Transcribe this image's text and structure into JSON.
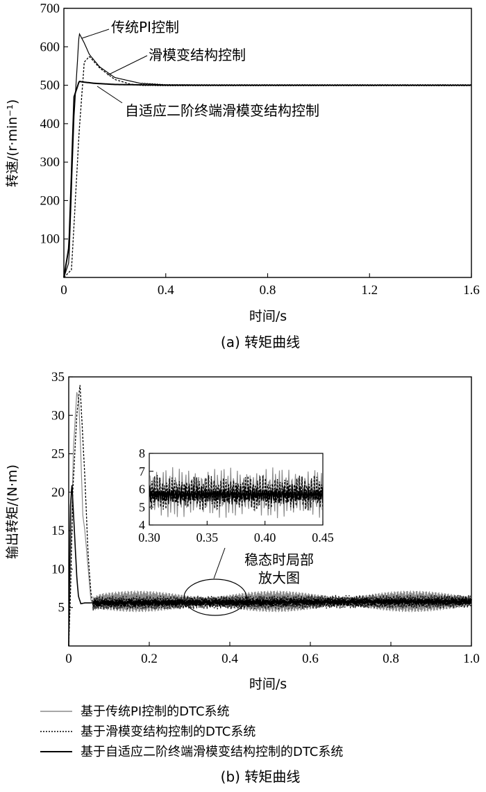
{
  "chart_data": [
    {
      "type": "line",
      "caption": "(a) 转矩曲线",
      "xlabel": "时间/s",
      "ylabel": "转速/(r·min⁻¹)",
      "xlim": [
        0,
        1.6
      ],
      "ylim": [
        0,
        700
      ],
      "xticks": [
        "0",
        "0.4",
        "0.8",
        "1.2",
        "1.6"
      ],
      "yticks": [
        "100",
        "200",
        "300",
        "400",
        "500",
        "600",
        "700"
      ],
      "grid": false,
      "series": [
        {
          "name": "传统PI控制",
          "style": "solid-thin",
          "x": [
            0,
            0.02,
            0.04,
            0.06,
            0.08,
            0.1,
            0.14,
            0.2,
            0.3,
            0.4,
            0.6,
            1.0,
            1.6
          ],
          "y": [
            0,
            40,
            420,
            635,
            610,
            580,
            548,
            520,
            505,
            501,
            500,
            500,
            500
          ]
        },
        {
          "name": "滑模变结构控制",
          "style": "dashed",
          "x": [
            0,
            0.03,
            0.06,
            0.08,
            0.1,
            0.14,
            0.2,
            0.26,
            0.3,
            0.4,
            0.6,
            1.6
          ],
          "y": [
            0,
            20,
            380,
            560,
            575,
            545,
            515,
            503,
            500,
            500,
            500,
            500
          ]
        },
        {
          "name": "自适应二阶终端滑模变结构控制",
          "style": "solid-thick",
          "x": [
            0,
            0.02,
            0.04,
            0.06,
            0.08,
            0.12,
            0.2,
            0.4,
            1.0,
            1.6
          ],
          "y": [
            0,
            80,
            470,
            510,
            508,
            505,
            502,
            500,
            500,
            500
          ]
        }
      ],
      "annotations": [
        "传统PI控制",
        "滑模变结构控制",
        "自适应二阶终端滑模变结构控制"
      ]
    },
    {
      "type": "line",
      "caption": "(b) 转矩曲线",
      "xlabel": "时间/s",
      "ylabel": "输出转矩/(N·m)",
      "xlim": [
        0,
        1.0
      ],
      "ylim": [
        0,
        35
      ],
      "xticks": [
        "0",
        "0.2",
        "0.4",
        "0.6",
        "0.8",
        "1.0"
      ],
      "yticks": [
        "5",
        "10",
        "15",
        "20",
        "25",
        "30",
        "35"
      ],
      "grid": false,
      "series": [
        {
          "name": "基于传统PI控制的DTC系统",
          "style": "solid-gray",
          "x": [
            0,
            0.005,
            0.012,
            0.02,
            0.025,
            0.03,
            0.035,
            0.04,
            0.05,
            0.055,
            0.06,
            0.08,
            1.0
          ],
          "y": [
            0,
            12,
            26,
            33,
            32,
            25,
            17,
            15,
            9,
            6,
            5.5,
            5.8,
            5.8
          ],
          "ripple": 1.4
        },
        {
          "name": "基于滑模变结构控制的DTC系统",
          "style": "dashed",
          "x": [
            0,
            0.005,
            0.01,
            0.02,
            0.028,
            0.034,
            0.04,
            0.048,
            0.055,
            0.06,
            0.08,
            1.0
          ],
          "y": [
            0,
            8,
            20,
            30,
            34,
            28,
            22,
            12,
            7,
            5.5,
            5.6,
            5.8
          ],
          "ripple": 0.9
        },
        {
          "name": "基于自适应二阶终端滑模变结构控制的DTC系统",
          "style": "solid-black",
          "x": [
            0,
            0.004,
            0.008,
            0.012,
            0.016,
            0.02,
            0.024,
            0.03,
            0.04,
            1.0
          ],
          "y": [
            0,
            18,
            21,
            17,
            13,
            9,
            6.5,
            5.5,
            5.6,
            5.8
          ],
          "ripple": 0.35
        }
      ],
      "inset": {
        "label": "稳态时局部\n放大图",
        "label_lines": [
          "稳态时局部",
          "放大图"
        ],
        "xlim": [
          0.3,
          0.45
        ],
        "ylim": [
          4,
          8
        ],
        "xticks": [
          "0.30",
          "0.35",
          "0.40",
          "0.45"
        ],
        "yticks": [
          "4",
          "5",
          "6",
          "7",
          "8"
        ]
      },
      "legend": [
        "基于传统PI控制的DTC系统",
        "基于滑模变结构控制的DTC系统",
        "基于自适应二阶终端滑模变结构控制的DTC系统"
      ]
    }
  ]
}
